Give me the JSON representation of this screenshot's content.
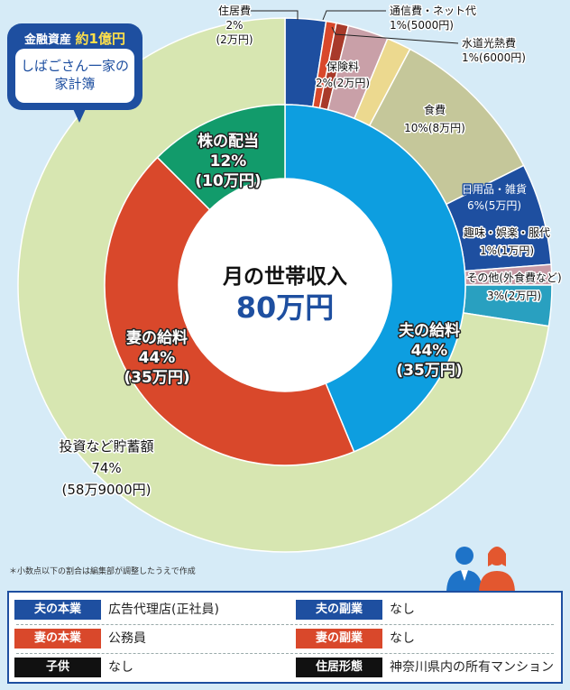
{
  "chart_data": {
    "type": "pie",
    "center": {
      "title": "月の世帯収入",
      "value": "80万円"
    },
    "income": [
      {
        "name": "夫の給料",
        "percent_label": "44%",
        "amount_label": "(35万円)",
        "value": 35,
        "color": "#0d9ee0"
      },
      {
        "name": "妻の給料",
        "percent_label": "44%",
        "amount_label": "(35万円)",
        "value": 35,
        "color": "#d9482b"
      },
      {
        "name": "株の配当",
        "percent_label": "12%",
        "amount_label": "(10万円)",
        "value": 10,
        "color": "#129b6b"
      }
    ],
    "spending": [
      {
        "name": "住居費",
        "percent_label": "2%",
        "amount_label": "(2万円)",
        "value": 2,
        "color": "#1e4fa0"
      },
      {
        "name": "通信費・ネット代",
        "percent_label": "1%(5000円)",
        "amount_label": "",
        "value": 0.5,
        "color": "#d9482b"
      },
      {
        "name": "水道光熱費",
        "percent_label": "1%(6000円)",
        "amount_label": "",
        "value": 0.6,
        "color": "#a83a2a"
      },
      {
        "name": "保険料",
        "percent_label": "2%(2万円)",
        "amount_label": "",
        "value": 2,
        "color": "#c9a0a8"
      },
      {
        "name": "",
        "percent_label": "",
        "amount_label": "",
        "value": 1.2,
        "color": "#ecd98f"
      },
      {
        "name": "食費",
        "percent_label": "10%(8万円)",
        "amount_label": "",
        "value": 8,
        "color": "#c5c79a"
      },
      {
        "name": "日用品・雑貨",
        "percent_label": "6%(5万円)",
        "amount_label": "",
        "value": 5,
        "color": "#1e4fa0"
      },
      {
        "name": "趣味・娯楽・服代",
        "percent_label": "1%(1万円)",
        "amount_label": "",
        "value": 1,
        "color": "#c79aa5"
      },
      {
        "name": "その他(外食費など)",
        "percent_label": "3%(2万円)",
        "amount_label": "",
        "value": 2,
        "color": "#29a0c0"
      },
      {
        "name": "投資など貯蓄額",
        "percent_label": "74%",
        "amount_label": "(58万9000円)",
        "value": 58.9,
        "color": "#d7e6b1"
      }
    ]
  },
  "bubble": {
    "top_small": "金融資産",
    "top_big": "約1億円",
    "line1": "しばごさん一家の",
    "line2": "家計簿"
  },
  "note": "＊小数点以下の割合は編集部が調整したうえで作成",
  "info": {
    "husband_job_label": "夫の本業",
    "husband_job_value": "広告代理店(正社員)",
    "husband_side_label": "夫の副業",
    "husband_side_value": "なし",
    "wife_job_label": "妻の本業",
    "wife_job_value": "公務員",
    "wife_side_label": "妻の副業",
    "wife_side_value": "なし",
    "kids_label": "子供",
    "kids_value": "なし",
    "housing_label": "住居形態",
    "housing_value": "神奈川県内の所有マンション"
  }
}
